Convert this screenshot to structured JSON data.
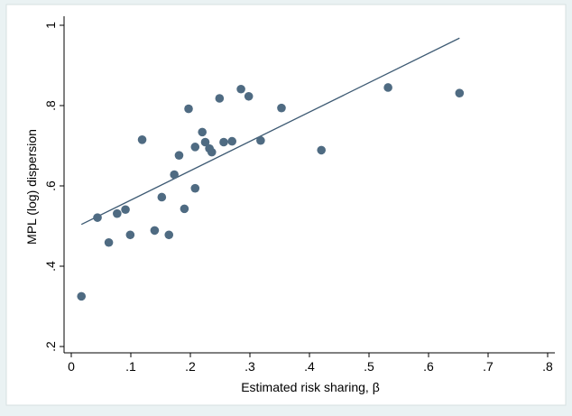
{
  "chart_data": {
    "type": "scatter",
    "title": "",
    "xlabel": "Estimated risk sharing, β",
    "ylabel": "MPL (log) dispersion",
    "xlim": [
      0,
      0.8
    ],
    "ylim": [
      0.2,
      1.0
    ],
    "x_ticks": [
      0,
      0.1,
      0.2,
      0.3,
      0.4,
      0.5,
      0.6,
      0.7,
      0.8
    ],
    "x_tick_labels": [
      "0",
      ".1",
      ".2",
      ".3",
      ".4",
      ".5",
      ".6",
      ".7",
      ".8"
    ],
    "y_ticks": [
      0.2,
      0.4,
      0.6,
      0.8,
      1.0
    ],
    "y_tick_labels": [
      ".2",
      ".4",
      ".6",
      ".8",
      "1"
    ],
    "grid": false,
    "legend": "none",
    "colors": {
      "background": "#eaf2f3",
      "plot_background": "#ffffff",
      "marker": "#4f6b82",
      "fit_line": "#3d5a73",
      "axis": "#000000"
    },
    "series": [
      {
        "points": [
          {
            "x": 0.017,
            "y": 0.325
          },
          {
            "x": 0.044,
            "y": 0.521
          },
          {
            "x": 0.063,
            "y": 0.459
          },
          {
            "x": 0.077,
            "y": 0.531
          },
          {
            "x": 0.091,
            "y": 0.541
          },
          {
            "x": 0.099,
            "y": 0.478
          },
          {
            "x": 0.119,
            "y": 0.715
          },
          {
            "x": 0.14,
            "y": 0.489
          },
          {
            "x": 0.152,
            "y": 0.572
          },
          {
            "x": 0.164,
            "y": 0.478
          },
          {
            "x": 0.173,
            "y": 0.628
          },
          {
            "x": 0.181,
            "y": 0.676
          },
          {
            "x": 0.19,
            "y": 0.543
          },
          {
            "x": 0.197,
            "y": 0.792
          },
          {
            "x": 0.208,
            "y": 0.594
          },
          {
            "x": 0.208,
            "y": 0.697
          },
          {
            "x": 0.22,
            "y": 0.734
          },
          {
            "x": 0.225,
            "y": 0.709
          },
          {
            "x": 0.232,
            "y": 0.693
          },
          {
            "x": 0.236,
            "y": 0.684
          },
          {
            "x": 0.249,
            "y": 0.818
          },
          {
            "x": 0.256,
            "y": 0.709
          },
          {
            "x": 0.27,
            "y": 0.711
          },
          {
            "x": 0.285,
            "y": 0.841
          },
          {
            "x": 0.298,
            "y": 0.823
          },
          {
            "x": 0.318,
            "y": 0.713
          },
          {
            "x": 0.353,
            "y": 0.794
          },
          {
            "x": 0.42,
            "y": 0.689
          },
          {
            "x": 0.532,
            "y": 0.845
          },
          {
            "x": 0.652,
            "y": 0.831
          }
        ]
      }
    ],
    "fit_line": {
      "x": [
        0.017,
        0.652
      ],
      "y": [
        0.504,
        0.968
      ]
    }
  }
}
